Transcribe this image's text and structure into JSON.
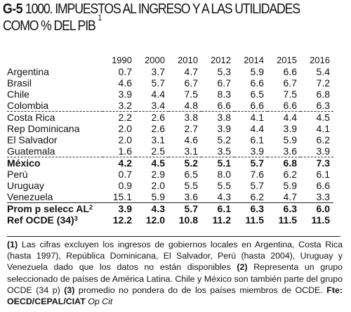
{
  "title": {
    "code": "G-5",
    "line1": "1000. IMPUESTOS AL INGRESO Y A LAS UTILIDADES",
    "line2": "COMO % DEL PIB",
    "marker": "1"
  },
  "table": {
    "years": [
      "1990",
      "2000",
      "2010",
      "2012",
      "2014",
      "2015",
      "2016"
    ],
    "rows": [
      {
        "label": "Argentina",
        "values": [
          "0.7",
          "3.7",
          "4.7",
          "5.3",
          "5.9",
          "6.6",
          "5.4"
        ]
      },
      {
        "label": "Brasil",
        "values": [
          "4.6",
          "5.7",
          "6.7",
          "6.7",
          "6.6",
          "6.7",
          "7.2"
        ]
      },
      {
        "label": "Chile",
        "values": [
          "3.9",
          "4.4",
          "7.5",
          "8.3",
          "6.5",
          "7.5",
          "6.8"
        ]
      },
      {
        "label": "Colombia",
        "values": [
          "3.2",
          "3.4",
          "4.8",
          "6.6",
          "6.6",
          "6.6",
          "6.3"
        ]
      },
      {
        "label": "Costa Rica",
        "values": [
          "2.2",
          "2.6",
          "3.8",
          "3.8",
          "4.1",
          "4.4",
          "4.5"
        ]
      },
      {
        "label": "Rep Dominicana",
        "values": [
          "2.0",
          "2.6",
          "2.7",
          "3.9",
          "4.4",
          "3.9",
          "4.1"
        ]
      },
      {
        "label": "El Salvador",
        "values": [
          "2.0",
          "3.1",
          "4.6",
          "5.2",
          "6.1",
          "5.9",
          "6.2"
        ]
      },
      {
        "label": "Guatemala",
        "values": [
          "1.6",
          "2.5",
          "3.1",
          "3.5",
          "3.9",
          "3.6",
          "3.9"
        ]
      },
      {
        "label": "México",
        "values": [
          "4.2",
          "4.5",
          "5.2",
          "5.1",
          "5.7",
          "6.8",
          "7.3"
        ]
      },
      {
        "label": "Perú",
        "values": [
          "0.7",
          "2.9",
          "6.5",
          "8.0",
          "7.6",
          "6.2",
          "6.1"
        ]
      },
      {
        "label": "Uruguay",
        "values": [
          "0.9",
          "2.0",
          "5.5",
          "5.5",
          "5.7",
          "5.9",
          "6.6"
        ]
      },
      {
        "label": "Venezuela",
        "values": [
          "15.1",
          "5.9",
          "3.6",
          "4.3",
          "6.2",
          "4.7",
          "3.3"
        ]
      },
      {
        "label": "Prom p selecc AL",
        "sup": "2",
        "values": [
          "3.9",
          "4.3",
          "5.7",
          "6.1",
          "6.3",
          "6.3",
          "6.0"
        ]
      },
      {
        "label": "Ref OCDE (34)",
        "sup": "3",
        "values": [
          "12.2",
          "12.0",
          "10.8",
          "11.2",
          "11.5",
          "11.5",
          "11.5"
        ]
      }
    ]
  },
  "footnote": {
    "n1": "(1)",
    "t1": " Las cifras excluyen los ingresos de gobiernos locales en Argentina, Costa Rica (hasta 1997), República Dominicana, El Salvador, Perú (hasta 2004), Uruguay y Venezuela dado que los datos no están disponibles ",
    "n2": "(2)",
    "t2": " Representa un grupo seleccionado de países de América Latina. Chile y México son también parte del grupo OCDE (34 p) ",
    "n3": "(3)",
    "t3": " promedio no pondera do de los países miembros de OCDE. ",
    "src_label": "Fte",
    "src_text": ": OECD/CEPAL/CIAT ",
    "opcit": "Op Cit"
  }
}
